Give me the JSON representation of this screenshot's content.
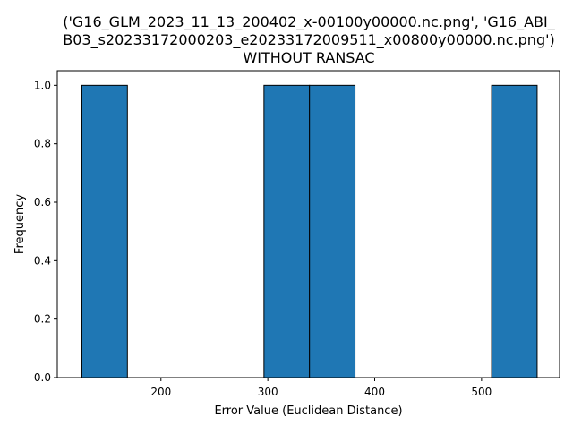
{
  "chart_data": {
    "type": "bar",
    "title_lines": [
      "('G16_GLM_2023_11_13_200402_x-00100y00000.nc.png', 'G16_ABI_",
      "B03_s20233172000203_e20233172009511_x00800y00000.nc.png')",
      "WITHOUT RANSAC"
    ],
    "xlabel": "Error Value (Euclidean Distance)",
    "ylabel": "Frequency",
    "xlim": [
      103,
      573
    ],
    "ylim": [
      0,
      1.05
    ],
    "xticks": [
      200,
      300,
      400,
      500
    ],
    "xtick_labels": [
      "200",
      "300",
      "400",
      "500"
    ],
    "yticks": [
      0.0,
      0.2,
      0.4,
      0.6,
      0.8,
      1.0
    ],
    "ytick_labels": [
      "0.0",
      "0.2",
      "0.4",
      "0.6",
      "0.8",
      "1.0"
    ],
    "bin_edges": [
      126,
      168.6,
      211.2,
      253.8,
      296.4,
      339,
      381.6,
      424.2,
      466.8,
      509.4,
      552
    ],
    "values": [
      1,
      0,
      0,
      0,
      1,
      1,
      0,
      0,
      0,
      1
    ],
    "bar_color": "#1f77b4",
    "edge_color": "#000000",
    "grid": false,
    "legend": false
  }
}
